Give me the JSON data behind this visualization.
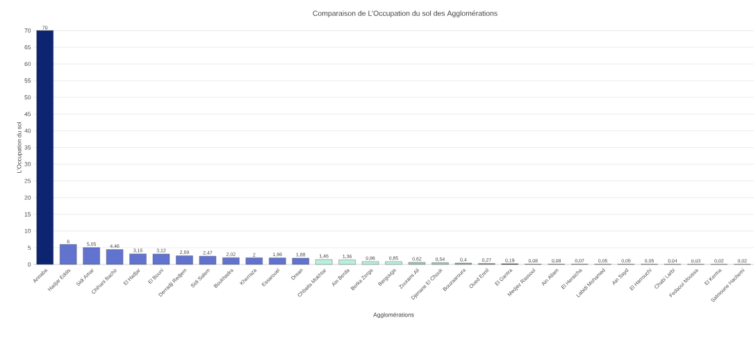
{
  "chart_data": {
    "type": "bar",
    "title": "Comparaison de L’Occupation du sol des Agglomérations",
    "xlabel": "Agglomérations",
    "ylabel": "L’Occupation du sol",
    "categories": [
      "Annaba",
      "Hadjar Eddis",
      "Sidi Amar",
      "Chihani Bachir",
      "El Hadjar",
      "El Bouni",
      "Derradji Redjem",
      "Sidi Salem",
      "Boukhadra",
      "Kherraza",
      "Essarouel",
      "Drean",
      "Chbaita Mokhtar",
      "Ain Berda",
      "Berka Zerga",
      "Bergouga",
      "Zourami Ali",
      "Djenane El Chouk",
      "Bouzaaroura",
      "Oued Ennil",
      "El Gantra",
      "Medjez Rassoul",
      "Ain Allam",
      "El Heraicha",
      "Labidi Mohamed",
      "Ain Sayd",
      "El Harrouchi",
      "Chabi Larbi",
      "Fedaoui Moussa",
      "El Kerma",
      "Salmoune Hachemi"
    ],
    "values": [
      70,
      6,
      5.05,
      4.46,
      3.15,
      3.12,
      2.59,
      2.47,
      2.02,
      2,
      1.96,
      1.88,
      1.46,
      1.36,
      0.86,
      0.85,
      0.62,
      0.54,
      0.4,
      0.27,
      0.19,
      0.08,
      0.08,
      0.07,
      0.05,
      0.05,
      0.05,
      0.04,
      0.03,
      0.02,
      0.02
    ],
    "value_labels": [
      "70",
      "6",
      "5,05",
      "4,46",
      "3,15",
      "3,12",
      "2,59",
      "2,47",
      "2,02",
      "2",
      "1,96",
      "1,88",
      "1,46",
      "1,36",
      "0,86",
      "0,85",
      "0,62",
      "0,54",
      "0,4",
      "0,27",
      "0,19",
      "0,08",
      "0,08",
      "0,07",
      "0,05",
      "0,05",
      "0,05",
      "0,04",
      "0,03",
      "0,02",
      "0,02"
    ],
    "colors": [
      "#0d2470",
      "#6173cf",
      "#6173cf",
      "#6173cf",
      "#6173cf",
      "#6173cf",
      "#6173cf",
      "#6173cf",
      "#6173cf",
      "#6173cf",
      "#6173cf",
      "#6173cf",
      "#b8f0dc",
      "#b8f0dc",
      "#b8f0dc",
      "#b8f0dc",
      "#9fc8b8",
      "#9fc8b8",
      "#8aa898",
      "#808080",
      "#1a1a1a",
      "#555555",
      "#555555",
      "#555555",
      "#555555",
      "#555555",
      "#555555",
      "#555555",
      "#555555",
      "#555555",
      "#555555"
    ],
    "ylim": [
      0,
      70
    ],
    "yticks": [
      0,
      5,
      10,
      15,
      20,
      25,
      30,
      35,
      40,
      45,
      50,
      55,
      60,
      65,
      70
    ],
    "grid": true
  }
}
